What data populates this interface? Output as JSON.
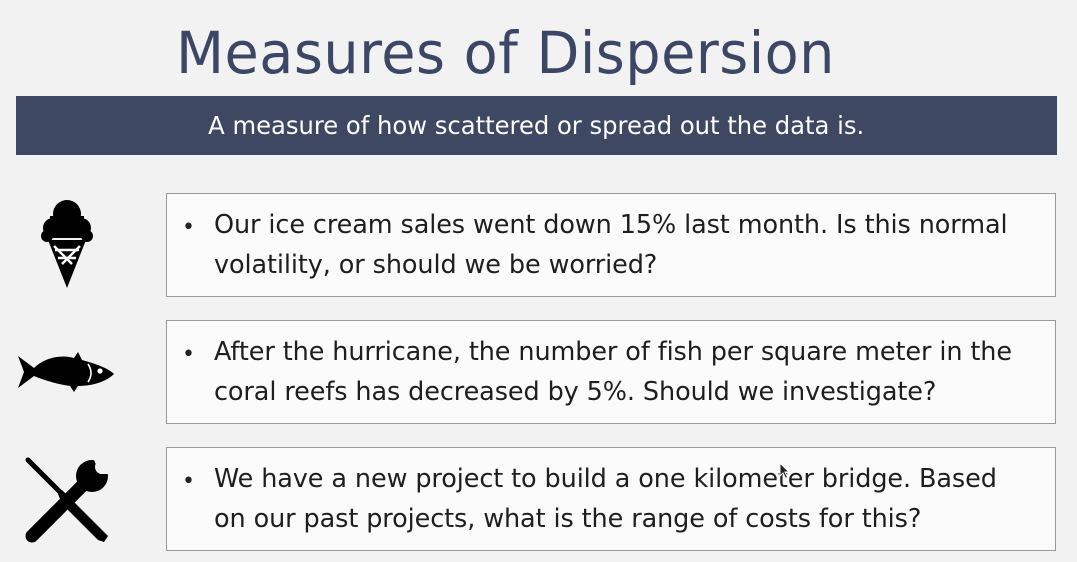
{
  "slide": {
    "title": "Measures of Dispersion",
    "subtitle": "A measure of how scattered or spread out the data is."
  },
  "items": [
    {
      "icon": "ice-cream-icon",
      "bullet": "•",
      "text": "Our ice cream sales went down 15% last month. Is this normal\nvolatility, or should we be worried?"
    },
    {
      "icon": "fish-icon",
      "bullet": "•",
      "text": "After the hurricane, the number of fish per square meter in the\ncoral reefs has decreased by 5%. Should we investigate?"
    },
    {
      "icon": "tools-icon",
      "bullet": "•",
      "text": "We have a new project to build a one kilometer bridge. Based\non our past projects, what is the range of costs for this?"
    }
  ],
  "colors": {
    "title": "#3c4766",
    "banner": "#3e4862",
    "background": "#f2f2f2",
    "icon": "#000000"
  }
}
